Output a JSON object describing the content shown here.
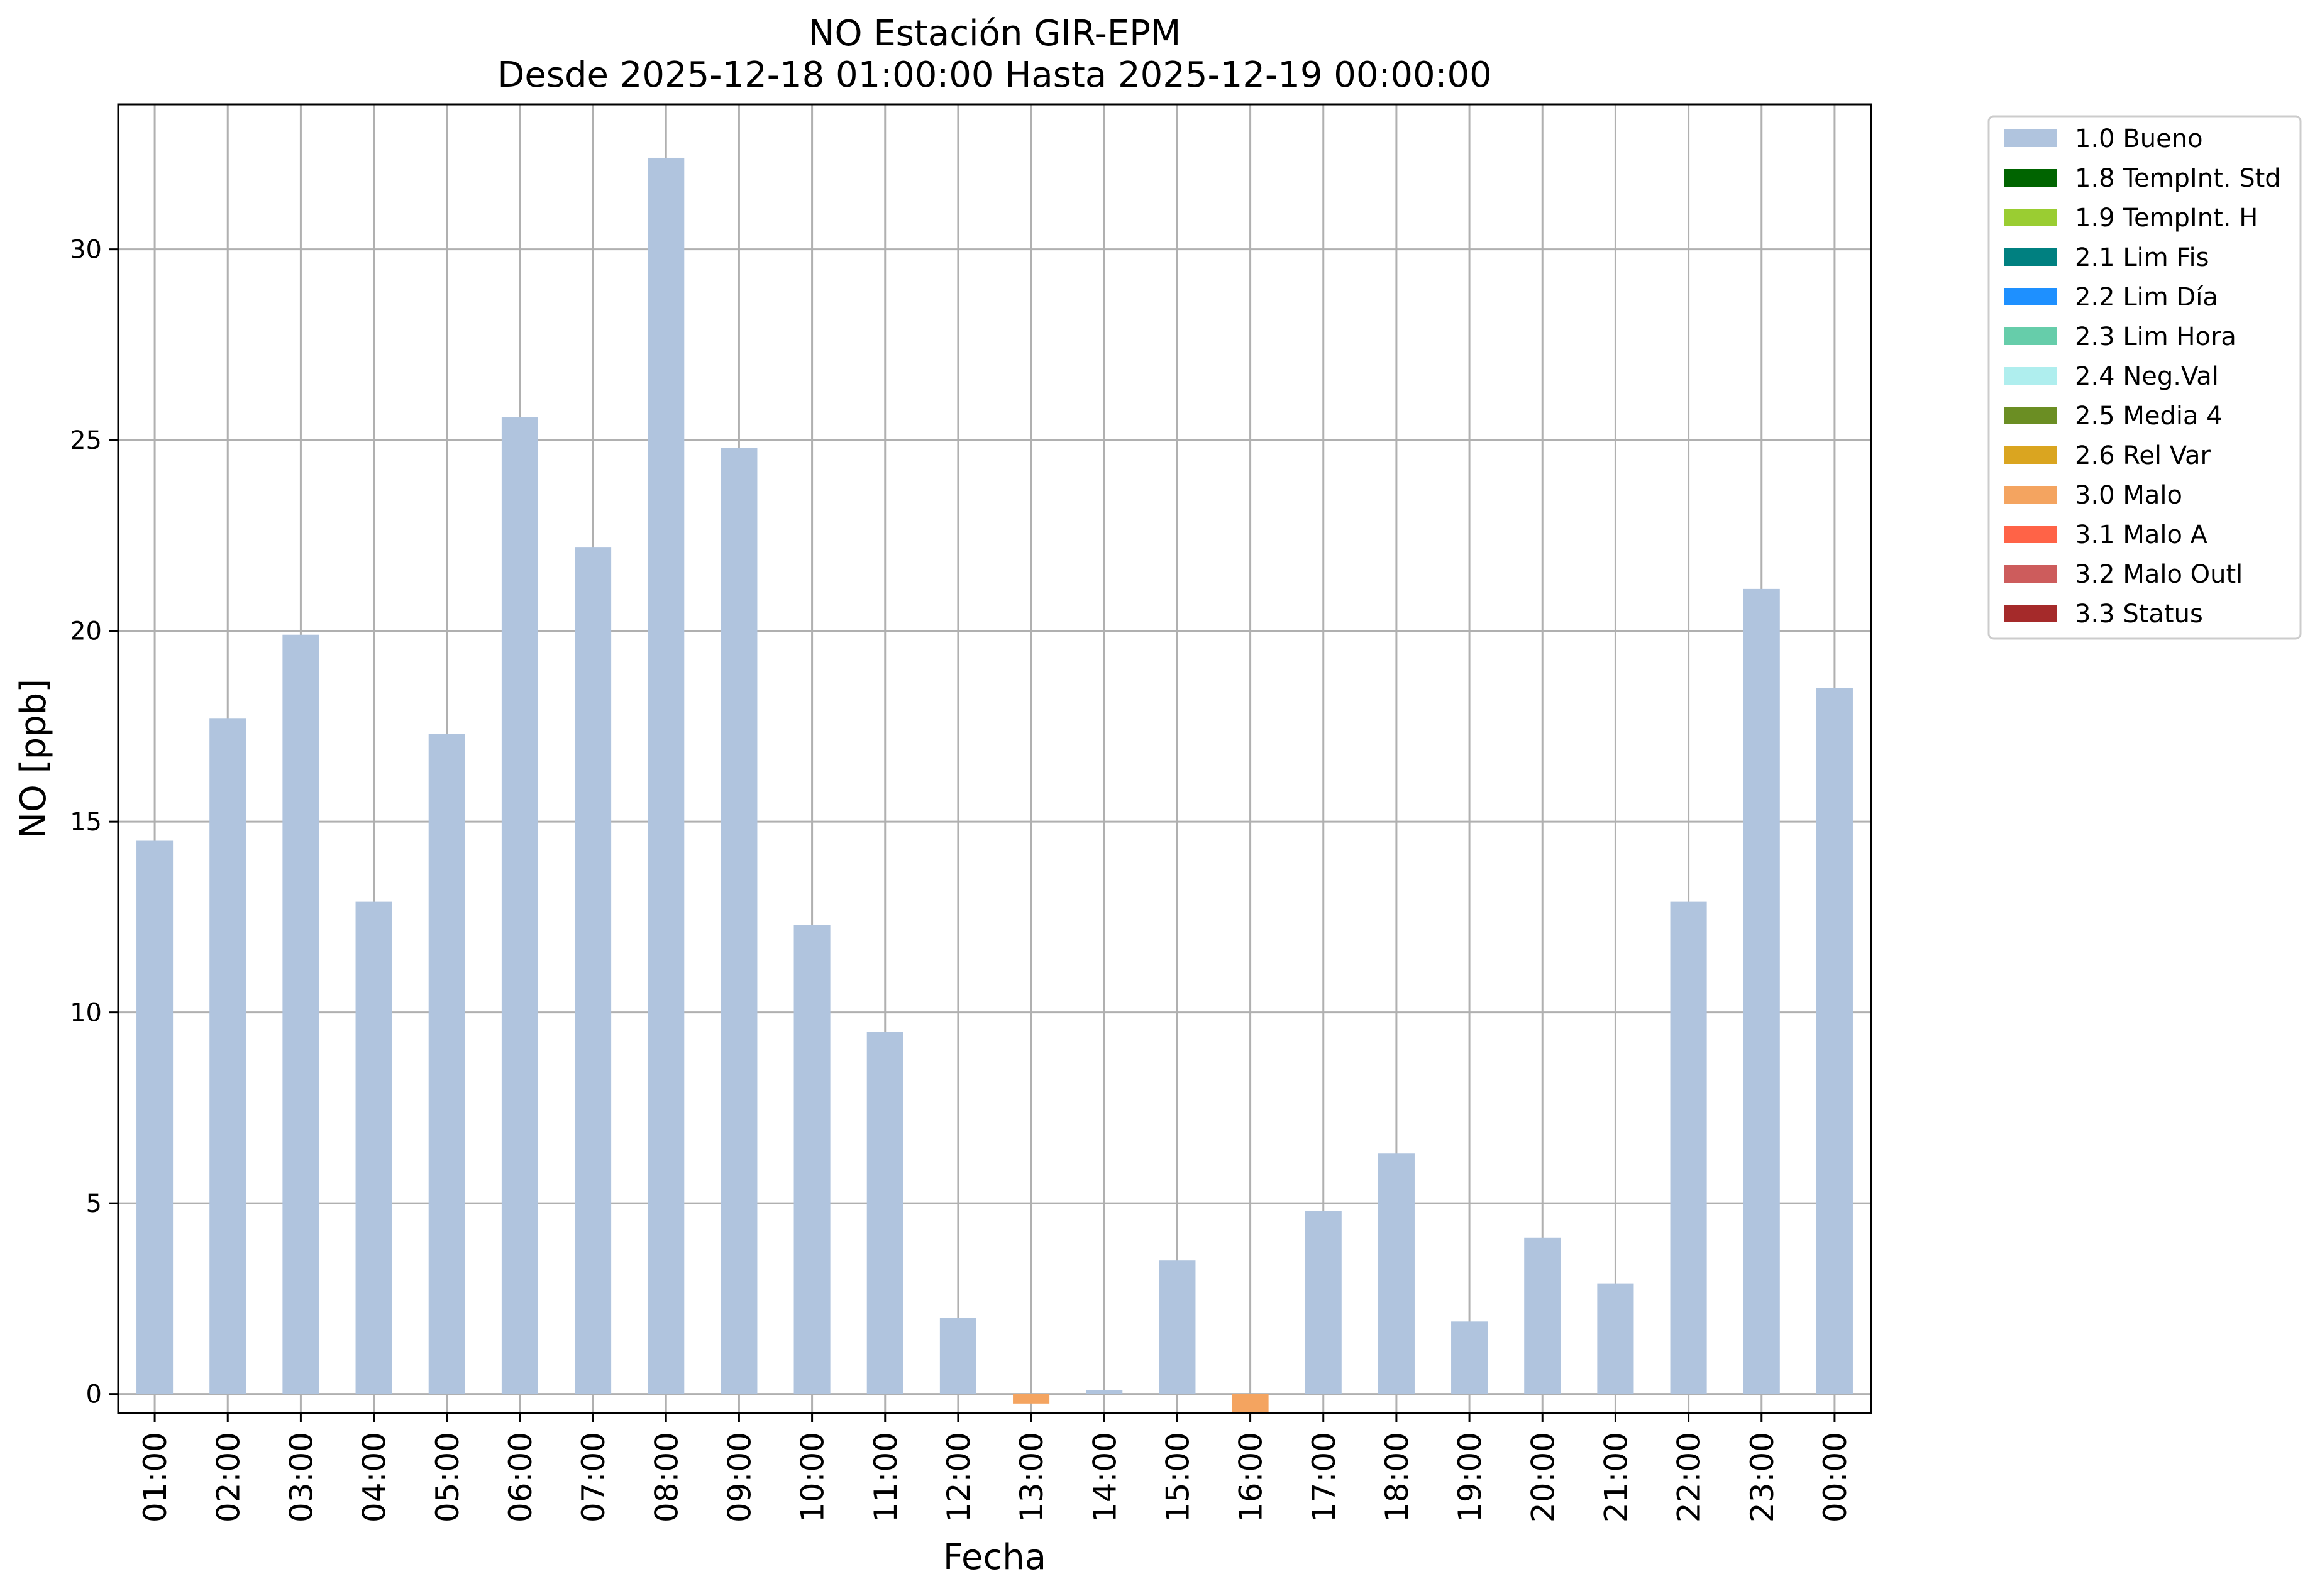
{
  "chart_data": {
    "type": "bar",
    "title": "NO Estación GIR-EPM",
    "subtitle": "Desde 2025-12-18 01:00:00 Hasta 2025-12-19 00:00:00",
    "xlabel": "Fecha",
    "ylabel": "NO [ppb]",
    "ylim": [
      -0.5,
      33.8
    ],
    "yticks": [
      0,
      5,
      10,
      15,
      20,
      25,
      30
    ],
    "grid": true,
    "legend_position": "outside-top-right",
    "categories": [
      "01:00",
      "02:00",
      "03:00",
      "04:00",
      "05:00",
      "06:00",
      "07:00",
      "08:00",
      "09:00",
      "10:00",
      "11:00",
      "12:00",
      "13:00",
      "14:00",
      "15:00",
      "16:00",
      "17:00",
      "18:00",
      "19:00",
      "20:00",
      "21:00",
      "22:00",
      "23:00",
      "00:00"
    ],
    "values": [
      14.5,
      17.7,
      19.9,
      12.9,
      17.3,
      25.6,
      22.2,
      32.4,
      24.8,
      12.3,
      9.5,
      2.0,
      -0.25,
      0.1,
      3.5,
      -0.5,
      4.8,
      6.3,
      1.9,
      4.1,
      2.9,
      12.9,
      21.1,
      18.5
    ],
    "flags": [
      "1.0 Bueno",
      "1.0 Bueno",
      "1.0 Bueno",
      "1.0 Bueno",
      "1.0 Bueno",
      "1.0 Bueno",
      "1.0 Bueno",
      "1.0 Bueno",
      "1.0 Bueno",
      "1.0 Bueno",
      "1.0 Bueno",
      "1.0 Bueno",
      "3.0 Malo",
      "1.0 Bueno",
      "1.0 Bueno",
      "3.0 Malo",
      "1.0 Bueno",
      "1.0 Bueno",
      "1.0 Bueno",
      "1.0 Bueno",
      "1.0 Bueno",
      "1.0 Bueno",
      "1.0 Bueno",
      "1.0 Bueno"
    ],
    "legend": [
      {
        "label": "1.0 Bueno",
        "color": "#b0c4de"
      },
      {
        "label": "1.8 TempInt. Std",
        "color": "#006400"
      },
      {
        "label": "1.9 TempInt. H",
        "color": "#9acd32"
      },
      {
        "label": "2.1 Lim Fis",
        "color": "#008080"
      },
      {
        "label": "2.2 Lim Día",
        "color": "#1e90ff"
      },
      {
        "label": "2.3 Lim Hora",
        "color": "#66cdaa"
      },
      {
        "label": "2.4 Neg.Val",
        "color": "#afeeee"
      },
      {
        "label": "2.5 Media 4",
        "color": "#6b8e23"
      },
      {
        "label": "2.6 Rel Var",
        "color": "#daa520"
      },
      {
        "label": "3.0 Malo",
        "color": "#f4a460"
      },
      {
        "label": "3.1 Malo A",
        "color": "#ff6347"
      },
      {
        "label": "3.2 Malo Outl",
        "color": "#cd5c5c"
      },
      {
        "label": "3.3 Status",
        "color": "#a52a2a"
      }
    ]
  }
}
